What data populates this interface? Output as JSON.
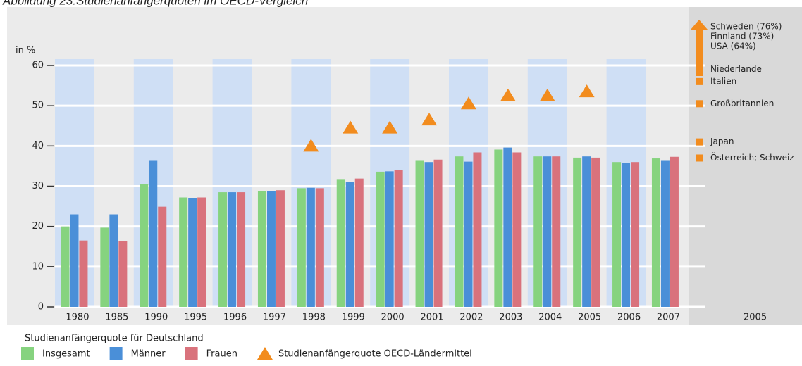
{
  "chart_data": {
    "type": "bar",
    "title": "Abbildung 23:Studienanfängerquoten im OECD-Vergleich",
    "y_label": "in %",
    "categories": [
      "1980",
      "1985",
      "1990",
      "1995",
      "1996",
      "1997",
      "1998",
      "1999",
      "2000",
      "2001",
      "2002",
      "2003",
      "2004",
      "2005",
      "2006",
      "2007"
    ],
    "legend_title": "Studienanfängerquote für Deutschland",
    "series": [
      {
        "name": "Insgesamt",
        "color": "#86d37f",
        "values": [
          20,
          19.7,
          30.5,
          27.2,
          28.5,
          28.8,
          29.5,
          31.6,
          33.6,
          36.3,
          37.4,
          39.1,
          37.4,
          37.1,
          36,
          36.9
        ]
      },
      {
        "name": "Männer",
        "color": "#4a8fd8",
        "values": [
          23,
          23,
          36.3,
          27,
          28.5,
          28.8,
          29.6,
          31.1,
          33.7,
          36,
          36.1,
          39.6,
          37.4,
          37.4,
          35.7,
          36.3
        ]
      },
      {
        "name": "Frauen",
        "color": "#d9727c",
        "values": [
          16.5,
          16.3,
          24.9,
          27.2,
          28.5,
          29,
          29.5,
          31.9,
          34,
          36.6,
          38.4,
          38.4,
          37.4,
          37.1,
          36,
          37.3
        ]
      },
      {
        "name": "Studienanfängerquote OECD-Ländermittel",
        "color": "#f28c1e",
        "marker": "triangle",
        "values": [
          null,
          null,
          null,
          null,
          null,
          null,
          40,
          44.5,
          44.5,
          46.5,
          50.5,
          52.5,
          52.5,
          53.5,
          null,
          null
        ]
      }
    ],
    "ylim": [
      0,
      60
    ],
    "yticks": [
      0,
      10,
      20,
      30,
      40,
      50,
      60
    ],
    "grid": true,
    "side_panel": {
      "label": "2005",
      "color": "#f28c1e",
      "arrow_labels": [
        "Schweden (76%)",
        "Finnland (73%)",
        "USA (64%)"
      ],
      "countries": [
        {
          "label": "Niederlande",
          "value": 59
        },
        {
          "label": "Italien",
          "value": 56
        },
        {
          "label": "Großbritannien",
          "value": 50.5
        },
        {
          "label": "Japan",
          "value": 41
        },
        {
          "label": "Österreich; Schweiz",
          "value": 37
        }
      ]
    }
  }
}
